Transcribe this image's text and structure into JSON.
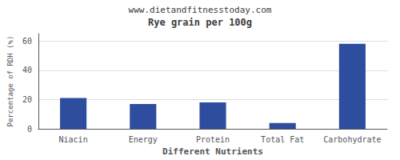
{
  "chart_data": {
    "type": "bar",
    "title": "Rye grain per 100g",
    "subtitle": "www.dietandfitnesstoday.com",
    "xlabel": "Different Nutrients",
    "ylabel": "Percentage of RDH (%)",
    "categories": [
      "Niacin",
      "Energy",
      "Protein",
      "Total Fat",
      "Carbohydrate"
    ],
    "values": [
      21,
      17,
      18,
      4,
      58
    ],
    "color": "#2e4d9f",
    "ylim": [
      0,
      65
    ],
    "yticks": [
      0,
      20,
      40,
      60
    ],
    "grid": true
  }
}
